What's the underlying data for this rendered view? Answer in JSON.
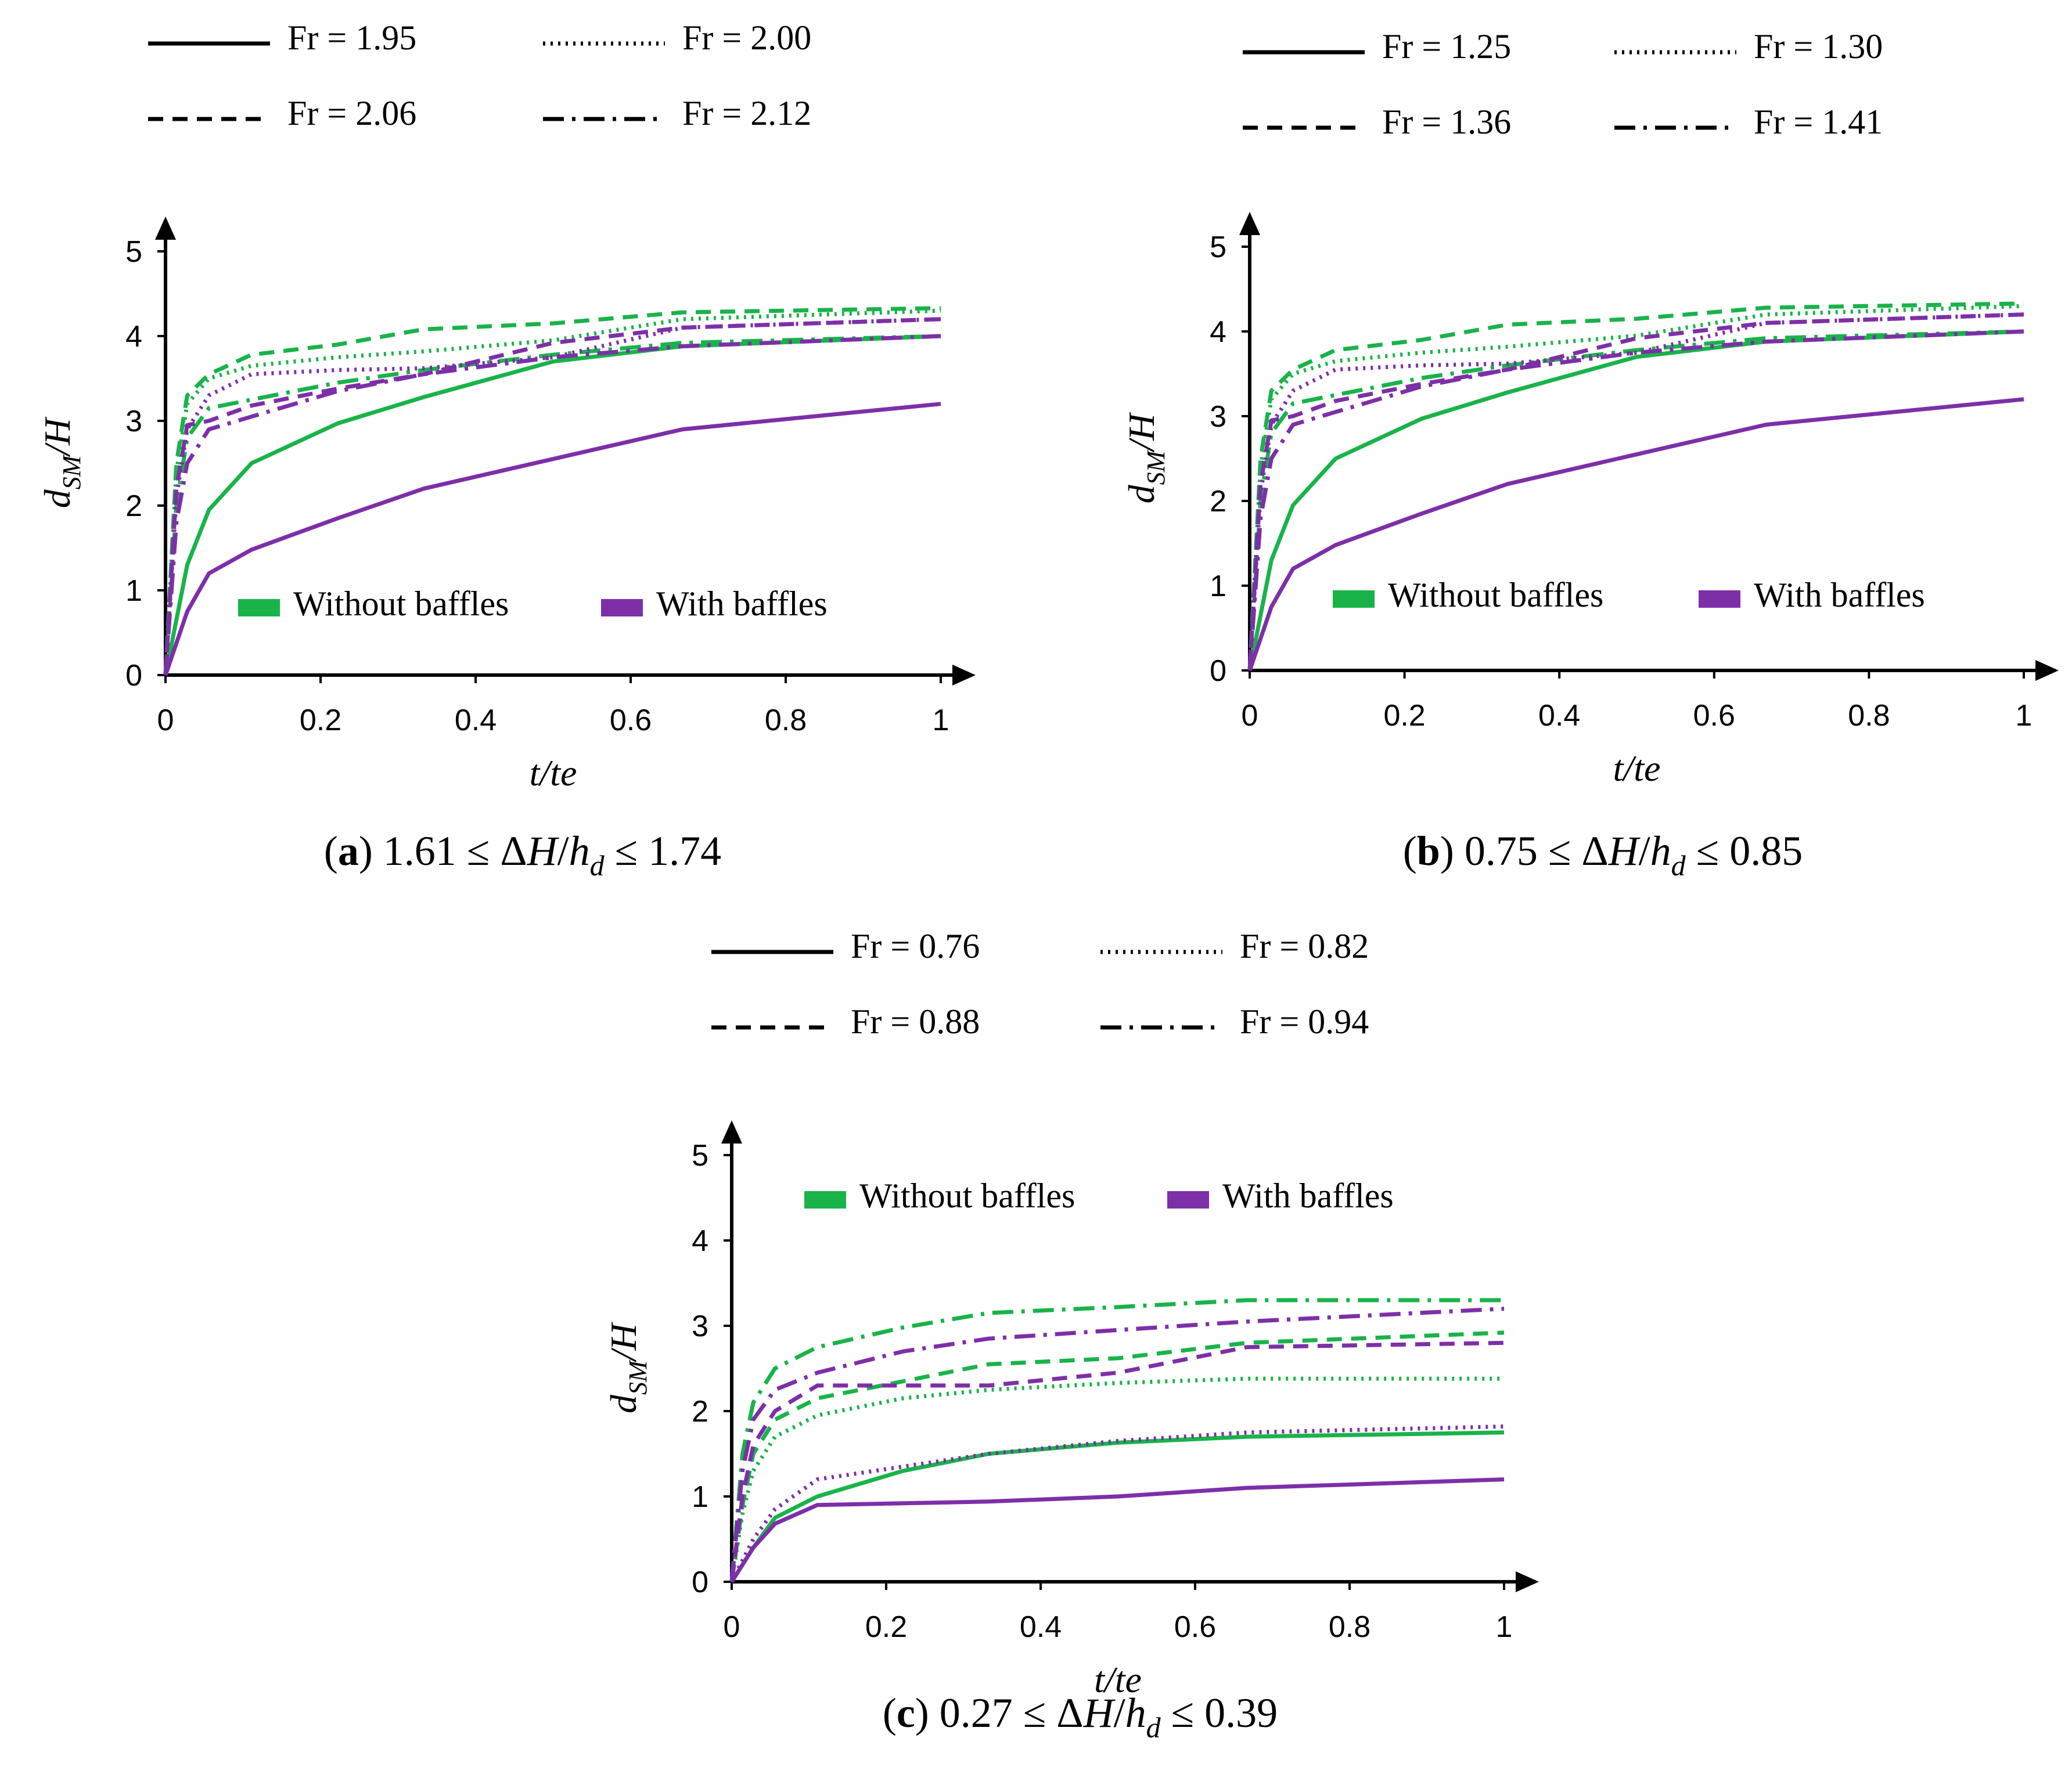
{
  "chart_data": [
    {
      "type": "line",
      "panel": "a",
      "caption": {
        "letter": "a",
        "text": "1.61 ≤ ΔH/h_d ≤ 1.74"
      },
      "xlabel": "t/te",
      "ylabel": "d_SM/H",
      "xlim": [
        0,
        1
      ],
      "ylim": [
        0,
        5
      ],
      "xticks": [
        "0",
        "0.2",
        "0.4",
        "0.6",
        "0.8",
        "1"
      ],
      "yticks": [
        "0",
        "1",
        "2",
        "3",
        "4",
        "5"
      ],
      "fr_legend": [
        {
          "label": "Fr = 1.95",
          "style": "solid"
        },
        {
          "label": "Fr = 2.00",
          "style": "dotted"
        },
        {
          "label": "Fr = 2.06",
          "style": "dashed"
        },
        {
          "label": "Fr = 2.12",
          "style": "dashdot"
        }
      ],
      "color_legend": [
        {
          "label": "Without baffles",
          "color": "#19b34a"
        },
        {
          "label": "With baffles",
          "color": "#7d2fa8"
        }
      ],
      "series": [
        {
          "name": "Without baffles, Fr = 1.95",
          "color": "#19b34a",
          "style": "solid",
          "x": [
            0,
            0.028,
            0.056,
            0.111,
            0.222,
            0.333,
            0.5,
            0.667,
            1
          ],
          "y": [
            0,
            1.3,
            1.95,
            2.5,
            2.97,
            3.28,
            3.7,
            3.88,
            4.0
          ]
        },
        {
          "name": "Without baffles, Fr = 2.00",
          "color": "#19b34a",
          "style": "dotted",
          "x": [
            0,
            0.014,
            0.028,
            0.056,
            0.111,
            0.222,
            0.333,
            0.5,
            0.667,
            1
          ],
          "y": [
            0,
            2.4,
            3.2,
            3.5,
            3.65,
            3.75,
            3.82,
            3.95,
            4.2,
            4.3
          ]
        },
        {
          "name": "Without baffles, Fr = 2.06",
          "color": "#19b34a",
          "style": "dashed",
          "x": [
            0,
            0.014,
            0.028,
            0.056,
            0.111,
            0.222,
            0.333,
            0.5,
            0.667,
            1
          ],
          "y": [
            0,
            2.5,
            3.3,
            3.55,
            3.78,
            3.9,
            4.08,
            4.15,
            4.28,
            4.33
          ]
        },
        {
          "name": "Without baffles, Fr = 2.12",
          "color": "#19b34a",
          "style": "dashdot",
          "x": [
            0,
            0.014,
            0.028,
            0.056,
            0.111,
            0.222,
            0.333,
            0.5,
            0.667,
            1
          ],
          "y": [
            0,
            2.0,
            2.8,
            3.15,
            3.25,
            3.45,
            3.6,
            3.78,
            3.92,
            4.0
          ]
        },
        {
          "name": "With baffles, Fr = 1.95",
          "color": "#7d2fa8",
          "style": "solid",
          "x": [
            0,
            0.028,
            0.056,
            0.111,
            0.222,
            0.333,
            0.5,
            0.667,
            1
          ],
          "y": [
            0,
            0.75,
            1.2,
            1.48,
            1.85,
            2.2,
            2.55,
            2.9,
            3.2
          ]
        },
        {
          "name": "With baffles, Fr = 2.00",
          "color": "#7d2fa8",
          "style": "dotted",
          "x": [
            0,
            0.014,
            0.028,
            0.056,
            0.111,
            0.222,
            0.333,
            0.5,
            0.667,
            1
          ],
          "y": [
            0,
            2.1,
            2.9,
            3.3,
            3.55,
            3.6,
            3.62,
            3.75,
            4.1,
            4.2
          ]
        },
        {
          "name": "With baffles, Fr = 2.06",
          "color": "#7d2fa8",
          "style": "dashed",
          "x": [
            0,
            0.014,
            0.028,
            0.056,
            0.111,
            0.222,
            0.333,
            0.5,
            0.667,
            1
          ],
          "y": [
            0,
            2.2,
            2.95,
            3.0,
            3.18,
            3.38,
            3.55,
            3.92,
            4.1,
            4.2
          ]
        },
        {
          "name": "With baffles, Fr = 2.12",
          "color": "#7d2fa8",
          "style": "dashdot",
          "x": [
            0,
            0.014,
            0.028,
            0.056,
            0.111,
            0.222,
            0.333,
            0.5,
            0.667,
            1
          ],
          "y": [
            0,
            1.8,
            2.5,
            2.9,
            3.05,
            3.35,
            3.55,
            3.75,
            3.88,
            4.0
          ]
        }
      ]
    },
    {
      "type": "line",
      "panel": "b",
      "caption": {
        "letter": "b",
        "text": "0.75 ≤ ΔH/h_d ≤ 0.85"
      },
      "xlabel": "t/te",
      "ylabel": "d_SM/H",
      "xlim": [
        0,
        1
      ],
      "ylim": [
        0,
        5
      ],
      "xticks": [
        "0",
        "0.2",
        "0.4",
        "0.6",
        "0.8",
        "1"
      ],
      "yticks": [
        "0",
        "1",
        "2",
        "3",
        "4",
        "5"
      ],
      "fr_legend": [
        {
          "label": "Fr = 1.25",
          "style": "solid"
        },
        {
          "label": "Fr = 1.30",
          "style": "dotted"
        },
        {
          "label": "Fr = 1.36",
          "style": "dashed"
        },
        {
          "label": "Fr = 1.41",
          "style": "dashdot"
        }
      ],
      "color_legend": [
        {
          "label": "Without baffles",
          "color": "#19b34a"
        },
        {
          "label": "With baffles",
          "color": "#7d2fa8"
        }
      ],
      "series": [
        {
          "name": "Without baffles, Fr = 1.25",
          "color": "#19b34a",
          "style": "solid",
          "x": [
            0,
            0.028,
            0.056,
            0.111,
            0.222,
            0.333,
            0.5,
            0.667,
            1
          ],
          "y": [
            0,
            1.3,
            1.95,
            2.5,
            2.97,
            3.28,
            3.7,
            3.88,
            4.0
          ]
        },
        {
          "name": "Without baffles, Fr = 1.30",
          "color": "#19b34a",
          "style": "dotted",
          "x": [
            0,
            0.014,
            0.028,
            0.056,
            0.111,
            0.222,
            0.333,
            0.5,
            0.667,
            1
          ],
          "y": [
            0,
            2.4,
            3.2,
            3.5,
            3.65,
            3.75,
            3.82,
            3.95,
            4.2,
            4.3
          ]
        },
        {
          "name": "Without baffles, Fr = 1.36",
          "color": "#19b34a",
          "style": "dashed",
          "x": [
            0,
            0.014,
            0.028,
            0.056,
            0.111,
            0.222,
            0.333,
            0.5,
            0.667,
            1
          ],
          "y": [
            0,
            2.5,
            3.3,
            3.55,
            3.78,
            3.9,
            4.08,
            4.15,
            4.28,
            4.33
          ]
        },
        {
          "name": "Without baffles, Fr = 1.41",
          "color": "#19b34a",
          "style": "dashdot",
          "x": [
            0,
            0.014,
            0.028,
            0.056,
            0.111,
            0.222,
            0.333,
            0.5,
            0.667,
            1
          ],
          "y": [
            0,
            2.0,
            2.8,
            3.15,
            3.25,
            3.45,
            3.6,
            3.78,
            3.92,
            4.0
          ]
        },
        {
          "name": "With baffles, Fr = 1.25",
          "color": "#7d2fa8",
          "style": "solid",
          "x": [
            0,
            0.028,
            0.056,
            0.111,
            0.222,
            0.333,
            0.5,
            0.667,
            1
          ],
          "y": [
            0,
            0.75,
            1.2,
            1.48,
            1.85,
            2.2,
            2.55,
            2.9,
            3.2
          ]
        },
        {
          "name": "With baffles, Fr = 1.30",
          "color": "#7d2fa8",
          "style": "dotted",
          "x": [
            0,
            0.014,
            0.028,
            0.056,
            0.111,
            0.222,
            0.333,
            0.5,
            0.667,
            1
          ],
          "y": [
            0,
            2.1,
            2.9,
            3.3,
            3.55,
            3.6,
            3.62,
            3.75,
            4.1,
            4.2
          ]
        },
        {
          "name": "With baffles, Fr = 1.36",
          "color": "#7d2fa8",
          "style": "dashed",
          "x": [
            0,
            0.014,
            0.028,
            0.056,
            0.111,
            0.222,
            0.333,
            0.5,
            0.667,
            1
          ],
          "y": [
            0,
            2.2,
            2.95,
            3.0,
            3.18,
            3.38,
            3.55,
            3.92,
            4.1,
            4.2
          ]
        },
        {
          "name": "With baffles, Fr = 1.41",
          "color": "#7d2fa8",
          "style": "dashdot",
          "x": [
            0,
            0.014,
            0.028,
            0.056,
            0.111,
            0.222,
            0.333,
            0.5,
            0.667,
            1
          ],
          "y": [
            0,
            1.8,
            2.5,
            2.9,
            3.05,
            3.35,
            3.55,
            3.75,
            3.88,
            4.0
          ]
        }
      ]
    },
    {
      "type": "line",
      "panel": "c",
      "caption": {
        "letter": "c",
        "text": "0.27 ≤ ΔH/h_d ≤ 0.39"
      },
      "xlabel": "t/te",
      "ylabel": "d_SM/H",
      "xlim": [
        0,
        1
      ],
      "ylim": [
        0,
        5
      ],
      "xticks": [
        "0",
        "0.2",
        "0.4",
        "0.6",
        "0.8",
        "1"
      ],
      "yticks": [
        "0",
        "1",
        "2",
        "3",
        "4",
        "5"
      ],
      "fr_legend": [
        {
          "label": "Fr = 0.76",
          "style": "solid"
        },
        {
          "label": "Fr = 0.82",
          "style": "dotted"
        },
        {
          "label": "Fr = 0.88",
          "style": "dashed"
        },
        {
          "label": "Fr = 0.94",
          "style": "dashdot"
        }
      ],
      "color_legend": [
        {
          "label": "Without baffles",
          "color": "#19b34a"
        },
        {
          "label": "With baffles",
          "color": "#7d2fa8"
        }
      ],
      "series": [
        {
          "name": "Without baffles, Fr = 0.76",
          "color": "#19b34a",
          "style": "solid",
          "x": [
            0,
            0.028,
            0.056,
            0.111,
            0.222,
            0.333,
            0.5,
            0.667,
            1
          ],
          "y": [
            0,
            0.4,
            0.75,
            1.0,
            1.3,
            1.5,
            1.63,
            1.7,
            1.75
          ]
        },
        {
          "name": "Without baffles, Fr = 0.82",
          "color": "#19b34a",
          "style": "dotted",
          "x": [
            0,
            0.014,
            0.028,
            0.056,
            0.111,
            0.222,
            0.333,
            0.5,
            0.667,
            1
          ],
          "y": [
            0,
            0.8,
            1.3,
            1.7,
            1.95,
            2.15,
            2.25,
            2.33,
            2.38,
            2.38
          ]
        },
        {
          "name": "Without baffles, Fr = 0.88",
          "color": "#19b34a",
          "style": "dashed",
          "x": [
            0,
            0.014,
            0.028,
            0.056,
            0.111,
            0.222,
            0.333,
            0.5,
            0.667,
            1
          ],
          "y": [
            0,
            0.9,
            1.5,
            1.9,
            2.15,
            2.35,
            2.55,
            2.62,
            2.8,
            2.92
          ]
        },
        {
          "name": "Without baffles, Fr = 0.94",
          "color": "#19b34a",
          "style": "dashdot",
          "x": [
            0,
            0.014,
            0.028,
            0.056,
            0.111,
            0.222,
            0.333,
            0.5,
            0.667,
            1
          ],
          "y": [
            0,
            1.5,
            2.1,
            2.5,
            2.75,
            2.98,
            3.15,
            3.22,
            3.3,
            3.3
          ]
        },
        {
          "name": "With baffles, Fr = 0.76",
          "color": "#7d2fa8",
          "style": "solid",
          "x": [
            0,
            0.028,
            0.056,
            0.111,
            0.222,
            0.333,
            0.5,
            0.667,
            1
          ],
          "y": [
            0,
            0.4,
            0.68,
            0.9,
            0.92,
            0.94,
            1.0,
            1.1,
            1.2
          ]
        },
        {
          "name": "With baffles, Fr = 0.82",
          "color": "#7d2fa8",
          "style": "dotted",
          "x": [
            0,
            0.028,
            0.056,
            0.111,
            0.222,
            0.333,
            0.5,
            0.667,
            1
          ],
          "y": [
            0,
            0.5,
            0.85,
            1.2,
            1.35,
            1.5,
            1.65,
            1.75,
            1.82
          ]
        },
        {
          "name": "With baffles, Fr = 0.88",
          "color": "#7d2fa8",
          "style": "dashed",
          "x": [
            0,
            0.014,
            0.028,
            0.056,
            0.111,
            0.222,
            0.333,
            0.5,
            0.667,
            1
          ],
          "y": [
            0,
            1.0,
            1.6,
            2.0,
            2.3,
            2.3,
            2.3,
            2.45,
            2.75,
            2.8
          ]
        },
        {
          "name": "With baffles, Fr = 0.94",
          "color": "#7d2fa8",
          "style": "dashdot",
          "x": [
            0,
            0.014,
            0.028,
            0.056,
            0.111,
            0.222,
            0.333,
            0.5,
            0.667,
            1
          ],
          "y": [
            0,
            1.3,
            1.9,
            2.25,
            2.45,
            2.7,
            2.85,
            2.95,
            3.05,
            3.2
          ]
        }
      ]
    }
  ]
}
